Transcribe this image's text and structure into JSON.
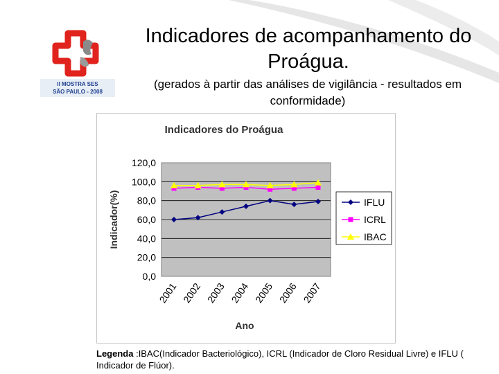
{
  "slide": {
    "title": "Indicadores de acompanhamento do Proágua.",
    "subtitle": "(gerados à partir das análises de vigilância - resultados em conformidade)",
    "logo_caption_line1": "II MOSTRA SES",
    "logo_caption_line2": "SÃO PAULO - 2008",
    "legend_label": "Legenda",
    "legend_text": " :IBAC(Indicador Bacteriológico), ICRL (Indicador de Cloro Residual Livre) e IFLU ( Indicador de Flúor)."
  },
  "colors": {
    "logo_red": "#e0231c",
    "plot_bg": "#c0c0c0",
    "swoosh": "#d9d9d9"
  },
  "chart_data": {
    "type": "line",
    "title": "Indicadores do Proágua",
    "xlabel": "Ano",
    "ylabel": "Indicador(%)",
    "categories": [
      "2001",
      "2002",
      "2003",
      "2004",
      "2005",
      "2006",
      "2007"
    ],
    "ylim": [
      0,
      120
    ],
    "yticks": [
      "0,0",
      "20,0",
      "40,0",
      "60,0",
      "80,0",
      "100,0",
      "120,0"
    ],
    "grid": true,
    "legend_position": "right",
    "series": [
      {
        "name": "IFLU",
        "color": "#000080",
        "marker": "diamond",
        "values": [
          60,
          62,
          68,
          74,
          80,
          76,
          79
        ]
      },
      {
        "name": "ICRL",
        "color": "#ff00ff",
        "marker": "square",
        "values": [
          93,
          94,
          93,
          94,
          92,
          93,
          94
        ]
      },
      {
        "name": "IBAC",
        "color": "#ffff00",
        "marker": "triangle",
        "values": [
          96,
          96,
          97,
          97,
          96,
          97,
          99
        ]
      }
    ]
  }
}
